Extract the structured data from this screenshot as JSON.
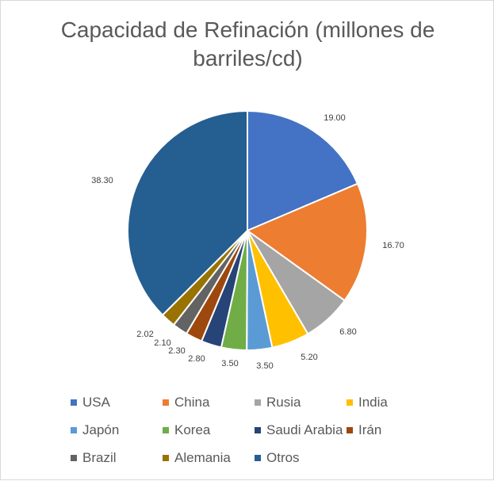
{
  "chart_data": {
    "type": "pie",
    "title": "Capacidad de Refinación (millones de barriles/cd)",
    "title_lines": [
      "Capacidad de Refinación (millones de",
      "barriles/cd)"
    ],
    "legend_placement": "bottom",
    "slices": [
      {
        "label": "USA",
        "value": 19.0,
        "value_label": "19.00",
        "color": "#4472c4"
      },
      {
        "label": "China",
        "value": 16.7,
        "value_label": "16.70",
        "color": "#ed7d31"
      },
      {
        "label": "Rusia",
        "value": 6.8,
        "value_label": "6.80",
        "color": "#a5a5a5"
      },
      {
        "label": "India",
        "value": 5.2,
        "value_label": "5.20",
        "color": "#ffc000"
      },
      {
        "label": "Japón",
        "value": 3.5,
        "value_label": "3.50",
        "color": "#5b9bd5"
      },
      {
        "label": "Korea",
        "value": 3.5,
        "value_label": "3.50",
        "color": "#70ad47"
      },
      {
        "label": "Saudi Arabia",
        "value": 2.8,
        "value_label": "2.80",
        "color": "#264478"
      },
      {
        "label": "Irán",
        "value": 2.3,
        "value_label": "2.30",
        "color": "#9e480e"
      },
      {
        "label": "Brazil",
        "value": 2.1,
        "value_label": "2.10",
        "color": "#636363"
      },
      {
        "label": "Alemania",
        "value": 2.02,
        "value_label": "2.02",
        "color": "#997300"
      },
      {
        "label": "Otros",
        "value": 38.3,
        "value_label": "38.30",
        "color": "#255e91"
      }
    ]
  }
}
